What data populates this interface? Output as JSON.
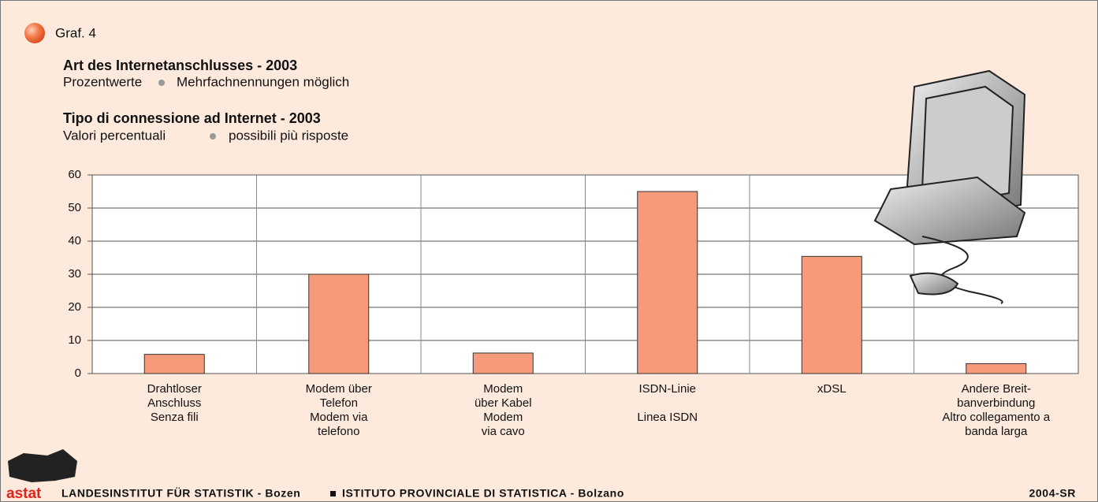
{
  "graf": "Graf. 4",
  "chart_data": {
    "type": "bar",
    "title_de": "Art des Internetanschlusses - 2003",
    "subtitle_de": [
      "Prozentwerte",
      "Mehrfachnennungen möglich"
    ],
    "title_it": "Tipo di connessione ad Internet - 2003",
    "subtitle_it": [
      "Valori percentuali",
      "possibili più risposte"
    ],
    "categories": [
      {
        "de": [
          "Drahtloser",
          "Anschluss"
        ],
        "it": [
          "Senza fili"
        ]
      },
      {
        "de": [
          "Modem über",
          "Telefon"
        ],
        "it": [
          "Modem via",
          "telefono"
        ]
      },
      {
        "de": [
          "Modem",
          "über Kabel"
        ],
        "it": [
          "Modem",
          "via cavo"
        ]
      },
      {
        "de": [
          "ISDN-Linie"
        ],
        "it": [
          "Linea ISDN"
        ]
      },
      {
        "de": [
          "xDSL"
        ]
      },
      {
        "de": [
          "Andere Breit-",
          "banverbindung"
        ],
        "it": [
          "Altro collegamento a",
          "banda larga"
        ]
      }
    ],
    "values": [
      5.8,
      30,
      6.2,
      55,
      35.4,
      3
    ],
    "color": "#f59b7c",
    "ylim": [
      0,
      60
    ],
    "yticks": [
      0,
      10,
      20,
      30,
      40,
      50,
      60
    ],
    "grid": true
  },
  "footer": {
    "logo": "astat",
    "left": "LANDESINSTITUT FÜR STATISTIK - Bozen",
    "middle": "ISTITUTO PROVINCIALE DI STATISTICA - Bolzano",
    "right": "2004-SR"
  }
}
